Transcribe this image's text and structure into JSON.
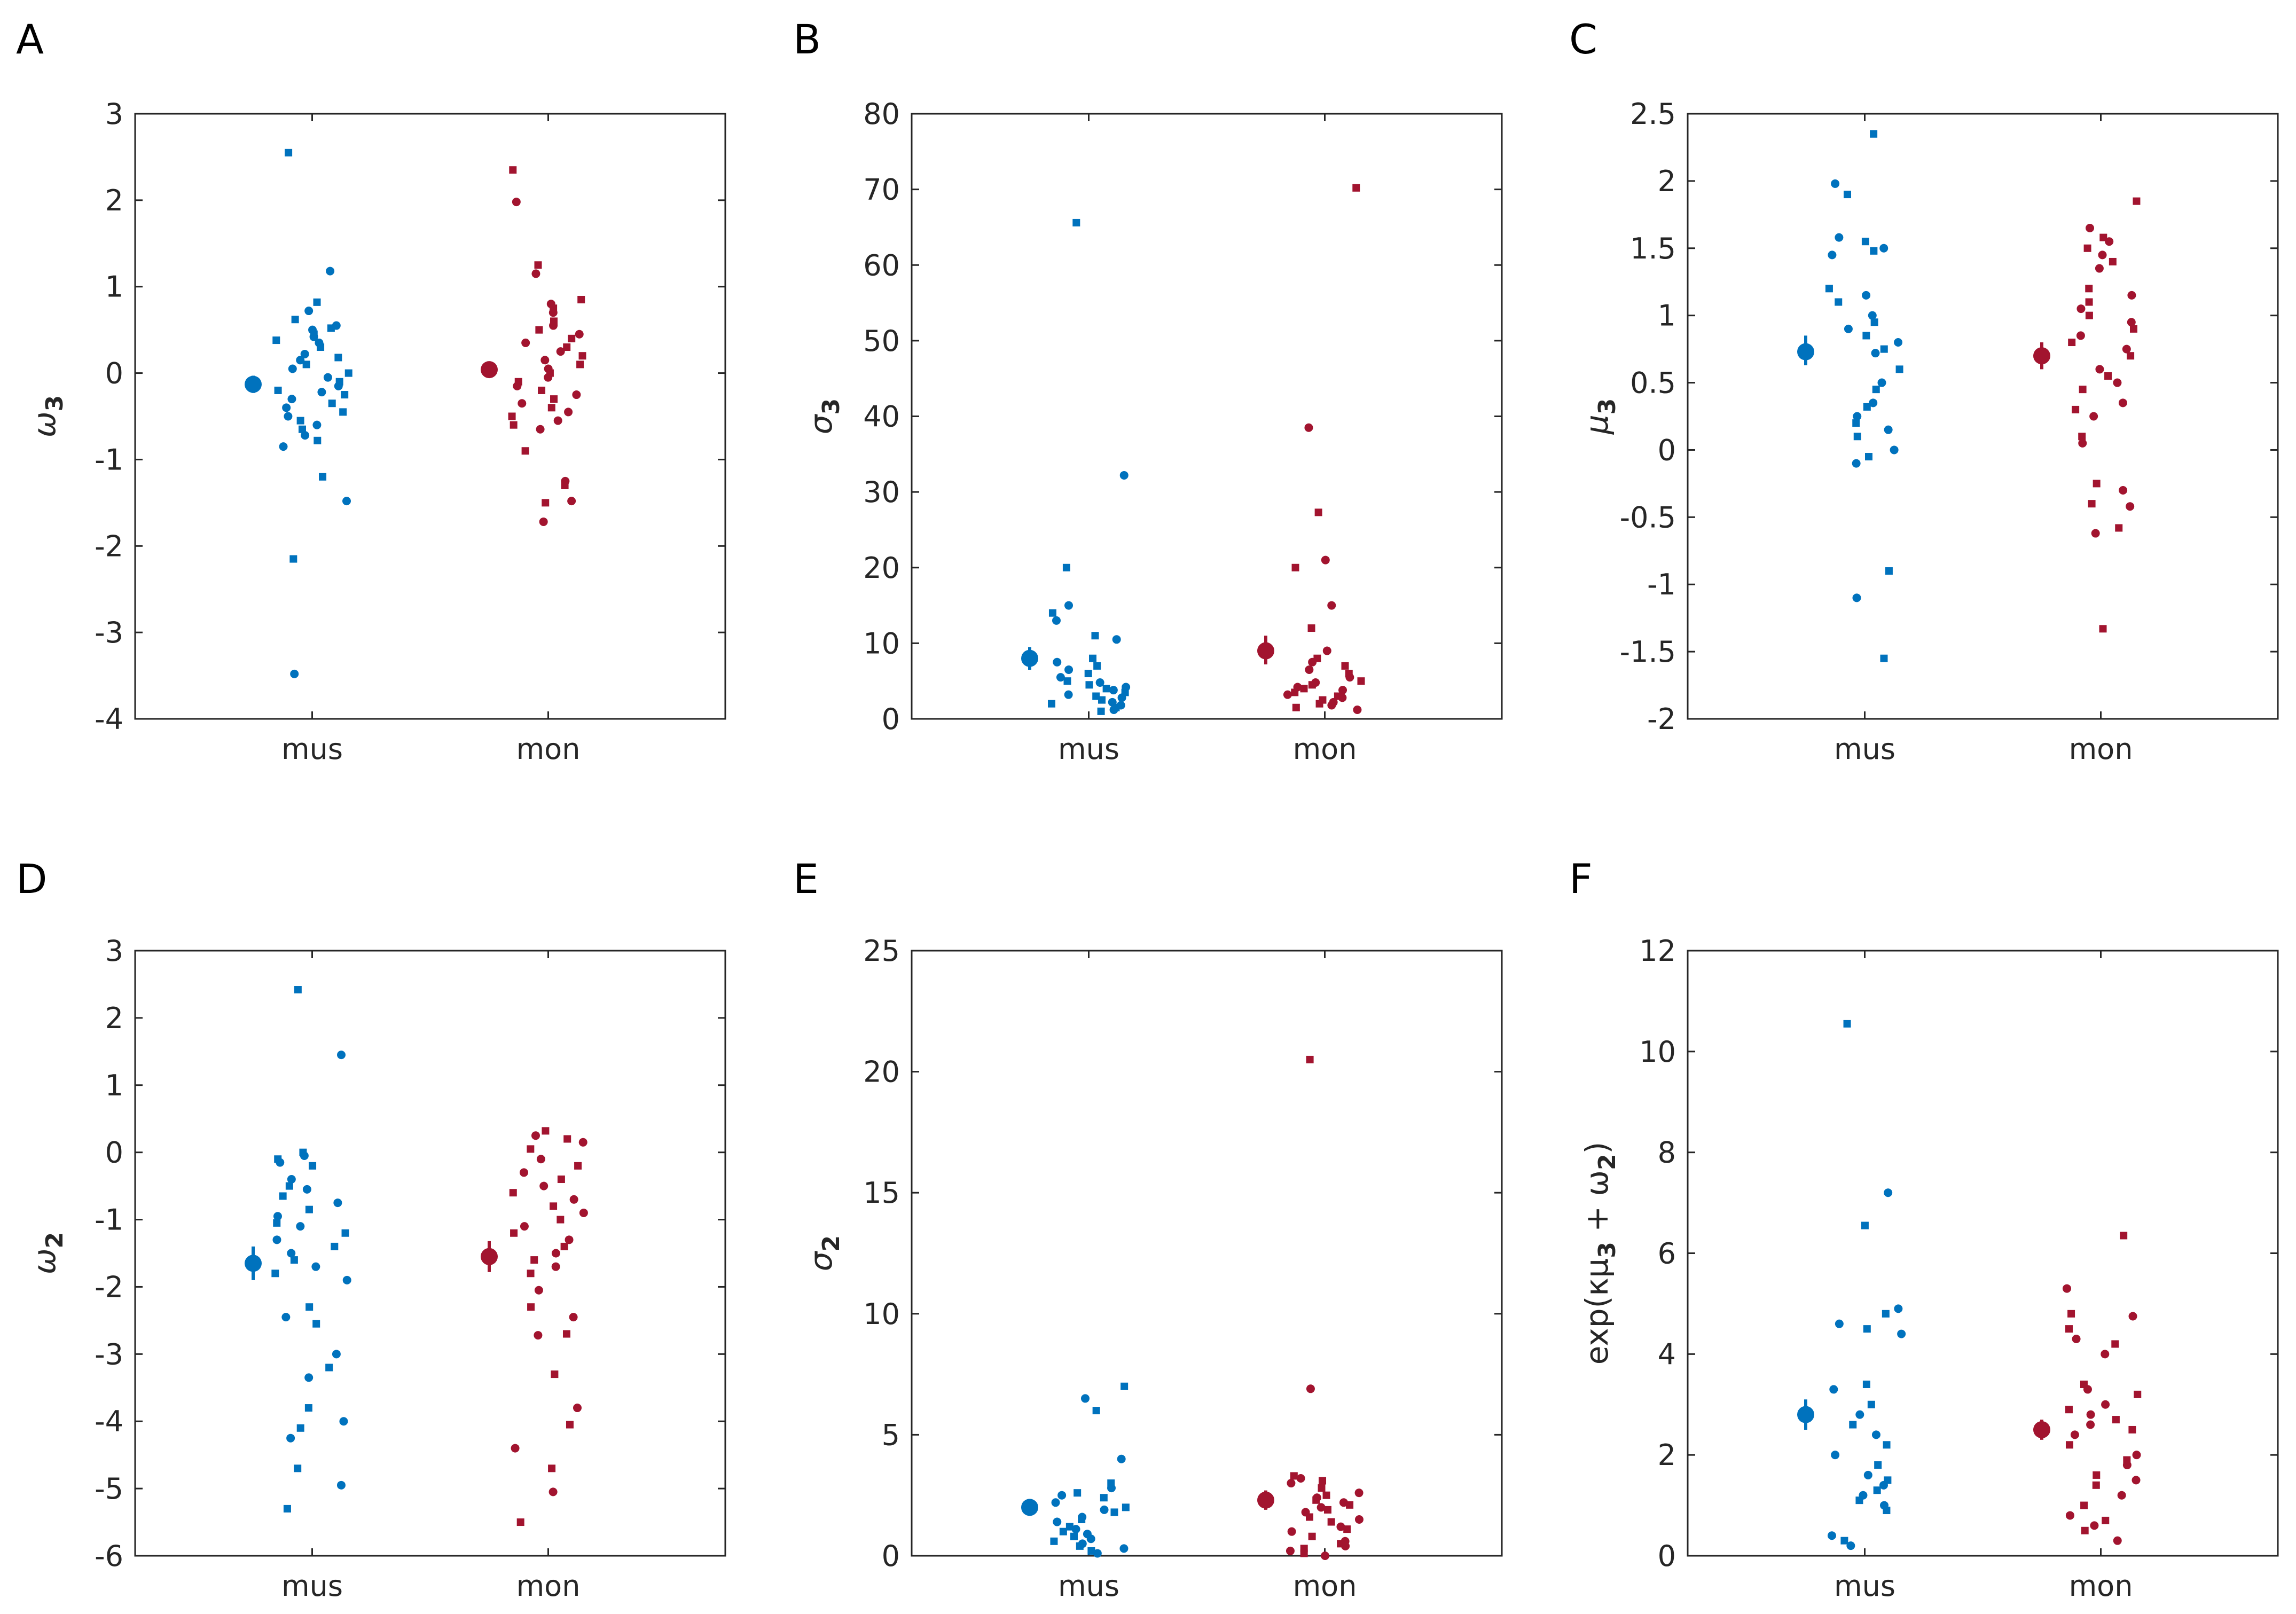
{
  "colors": {
    "mus": "#0072BD",
    "mon": "#A2142F",
    "axis": "#262626"
  },
  "chart_data": [
    {
      "panel": "A",
      "type": "scatter",
      "categories": [
        "mus",
        "mon"
      ],
      "ylabel": "ω",
      "ylabel_sub": "3",
      "ylim": [
        -4,
        3
      ],
      "yticks": [
        "-4",
        "-3",
        "-2",
        "-1",
        "0",
        "1",
        "2",
        "3"
      ],
      "summary": [
        {
          "group": "mus",
          "mean": -0.13,
          "low": -0.23,
          "high": -0.03
        },
        {
          "group": "mon",
          "mean": 0.04,
          "low": -0.05,
          "high": 0.13
        }
      ],
      "series": [
        {
          "group": "mus",
          "values": [
            2.55,
            1.18,
            0.82,
            0.72,
            0.62,
            0.55,
            0.52,
            0.5,
            0.45,
            0.42,
            0.38,
            0.35,
            0.3,
            0.22,
            0.18,
            0.15,
            0.1,
            0.05,
            0.0,
            -0.05,
            -0.1,
            -0.15,
            -0.2,
            -0.22,
            -0.25,
            -0.3,
            -0.35,
            -0.4,
            -0.45,
            -0.5,
            -0.55,
            -0.6,
            -0.65,
            -0.72,
            -0.78,
            -0.85,
            -1.2,
            -1.48,
            -2.15,
            -3.48
          ]
        },
        {
          "group": "mon",
          "values": [
            2.35,
            1.98,
            1.25,
            1.15,
            0.85,
            0.8,
            0.75,
            0.7,
            0.6,
            0.55,
            0.5,
            0.45,
            0.4,
            0.35,
            0.3,
            0.25,
            0.2,
            0.15,
            0.1,
            0.05,
            0.0,
            -0.05,
            -0.1,
            -0.15,
            -0.2,
            -0.25,
            -0.3,
            -0.35,
            -0.4,
            -0.45,
            -0.5,
            -0.55,
            -0.6,
            -0.65,
            -0.9,
            -1.25,
            -1.3,
            -1.48,
            -1.5,
            -1.72
          ]
        }
      ]
    },
    {
      "panel": "B",
      "type": "scatter",
      "categories": [
        "mus",
        "mon"
      ],
      "ylabel": "σ",
      "ylabel_sub": "3",
      "ylim": [
        0,
        80
      ],
      "yticks": [
        "0",
        "10",
        "20",
        "30",
        "40",
        "50",
        "60",
        "70",
        "80"
      ],
      "summary": [
        {
          "group": "mus",
          "mean": 8.0,
          "low": 6.5,
          "high": 9.5
        },
        {
          "group": "mon",
          "mean": 9.0,
          "low": 7.2,
          "high": 11.0
        }
      ],
      "series": [
        {
          "group": "mus",
          "values": [
            65.6,
            32.2,
            20.0,
            15.0,
            14.0,
            13.0,
            11.0,
            10.5,
            8.0,
            7.5,
            7.0,
            6.5,
            6.0,
            5.5,
            5.0,
            4.8,
            4.5,
            4.2,
            4.0,
            3.8,
            3.5,
            3.2,
            3.0,
            2.8,
            2.5,
            2.2,
            2.0,
            1.8,
            1.5,
            1.2,
            1.0
          ]
        },
        {
          "group": "mon",
          "values": [
            70.2,
            38.5,
            27.3,
            21.0,
            20.0,
            15.0,
            12.0,
            9.0,
            8.0,
            7.5,
            7.0,
            6.5,
            6.0,
            5.5,
            5.0,
            4.8,
            4.5,
            4.2,
            4.0,
            3.8,
            3.5,
            3.2,
            3.0,
            2.8,
            2.5,
            2.2,
            2.0,
            1.8,
            1.5,
            1.2
          ]
        }
      ]
    },
    {
      "panel": "C",
      "type": "scatter",
      "categories": [
        "mus",
        "mon"
      ],
      "ylabel": "μ",
      "ylabel_sub": "3",
      "ylim": [
        -2,
        2.5
      ],
      "yticks": [
        "-2",
        "-1.5",
        "-1",
        "-0.5",
        "0",
        "0.5",
        "1",
        "1.5",
        "2",
        "2.5"
      ],
      "summary": [
        {
          "group": "mus",
          "mean": 0.73,
          "low": 0.63,
          "high": 0.85
        },
        {
          "group": "mon",
          "mean": 0.7,
          "low": 0.6,
          "high": 0.8
        }
      ],
      "series": [
        {
          "group": "mus",
          "values": [
            2.35,
            1.98,
            1.9,
            1.58,
            1.55,
            1.5,
            1.48,
            1.45,
            1.2,
            1.15,
            1.1,
            1.0,
            0.95,
            0.9,
            0.85,
            0.8,
            0.75,
            0.72,
            0.6,
            0.5,
            0.45,
            0.35,
            0.32,
            0.25,
            0.2,
            0.15,
            0.1,
            0.0,
            -0.05,
            -0.1,
            -0.9,
            -1.1,
            -1.55
          ]
        },
        {
          "group": "mon",
          "values": [
            1.85,
            1.65,
            1.58,
            1.55,
            1.5,
            1.45,
            1.4,
            1.35,
            1.2,
            1.15,
            1.1,
            1.05,
            1.0,
            0.95,
            0.9,
            0.85,
            0.8,
            0.75,
            0.7,
            0.6,
            0.55,
            0.5,
            0.45,
            0.35,
            0.3,
            0.25,
            0.1,
            0.05,
            -0.25,
            -0.3,
            -0.4,
            -0.42,
            -0.58,
            -0.62,
            -1.33
          ]
        }
      ]
    },
    {
      "panel": "D",
      "type": "scatter",
      "categories": [
        "mus",
        "mon"
      ],
      "ylabel": "ω",
      "ylabel_sub": "2",
      "ylim": [
        -6,
        3
      ],
      "yticks": [
        "-6",
        "-5",
        "-4",
        "-3",
        "-2",
        "-1",
        "0",
        "1",
        "2",
        "3"
      ],
      "summary": [
        {
          "group": "mus",
          "mean": -1.65,
          "low": -1.9,
          "high": -1.4
        },
        {
          "group": "mon",
          "mean": -1.55,
          "low": -1.78,
          "high": -1.32
        }
      ],
      "series": [
        {
          "group": "mus",
          "values": [
            2.42,
            1.45,
            0.0,
            -0.05,
            -0.1,
            -0.15,
            -0.2,
            -0.4,
            -0.5,
            -0.55,
            -0.65,
            -0.75,
            -0.85,
            -0.95,
            -1.05,
            -1.1,
            -1.2,
            -1.3,
            -1.4,
            -1.5,
            -1.6,
            -1.7,
            -1.8,
            -1.9,
            -2.3,
            -2.45,
            -2.55,
            -3.0,
            -3.2,
            -3.35,
            -3.8,
            -4.0,
            -4.1,
            -4.25,
            -4.7,
            -4.95,
            -5.3
          ]
        },
        {
          "group": "mon",
          "values": [
            0.32,
            0.25,
            0.2,
            0.15,
            0.05,
            -0.1,
            -0.2,
            -0.3,
            -0.4,
            -0.5,
            -0.6,
            -0.7,
            -0.8,
            -0.9,
            -1.0,
            -1.1,
            -1.2,
            -1.3,
            -1.4,
            -1.5,
            -1.6,
            -1.7,
            -1.8,
            -2.05,
            -2.3,
            -2.45,
            -2.7,
            -2.72,
            -3.3,
            -3.8,
            -4.05,
            -4.4,
            -4.7,
            -5.05,
            -5.5
          ]
        }
      ]
    },
    {
      "panel": "E",
      "type": "scatter",
      "categories": [
        "mus",
        "mon"
      ],
      "ylabel": "σ",
      "ylabel_sub": "2",
      "ylim": [
        0,
        25
      ],
      "yticks": [
        "0",
        "5",
        "10",
        "15",
        "20",
        "25"
      ],
      "summary": [
        {
          "group": "mus",
          "mean": 2.0,
          "low": 1.7,
          "high": 2.3
        },
        {
          "group": "mon",
          "mean": 2.3,
          "low": 1.9,
          "high": 2.7
        }
      ],
      "series": [
        {
          "group": "mus",
          "values": [
            7.0,
            6.5,
            6.0,
            4.0,
            3.0,
            2.8,
            2.6,
            2.5,
            2.4,
            2.2,
            2.0,
            1.9,
            1.8,
            1.6,
            1.5,
            1.4,
            1.2,
            1.1,
            1.0,
            0.9,
            0.8,
            0.7,
            0.6,
            0.5,
            0.4,
            0.3,
            0.2,
            0.1
          ]
        },
        {
          "group": "mon",
          "values": [
            20.5,
            6.9,
            3.3,
            3.2,
            3.1,
            3.0,
            2.8,
            2.6,
            2.5,
            2.4,
            2.3,
            2.2,
            2.1,
            2.0,
            1.9,
            1.8,
            1.6,
            1.5,
            1.4,
            1.2,
            1.1,
            1.0,
            0.8,
            0.6,
            0.5,
            0.4,
            0.3,
            0.2,
            0.1,
            0.0
          ]
        }
      ]
    },
    {
      "panel": "F",
      "type": "scatter",
      "categories": [
        "mus",
        "mon"
      ],
      "ylabel": "exp(κμ",
      "ylabel_sub": "3",
      "ylabel_mid": " + ω",
      "ylabel_sub2": "2",
      "ylabel_end": ")",
      "ylim": [
        0,
        12
      ],
      "yticks": [
        "0",
        "2",
        "4",
        "6",
        "8",
        "10",
        "12"
      ],
      "summary": [
        {
          "group": "mus",
          "mean": 2.8,
          "low": 2.5,
          "high": 3.1
        },
        {
          "group": "mon",
          "mean": 2.5,
          "low": 2.3,
          "high": 2.7
        }
      ],
      "series": [
        {
          "group": "mus",
          "values": [
            10.55,
            7.2,
            6.55,
            4.9,
            4.8,
            4.6,
            4.5,
            4.4,
            3.4,
            3.3,
            3.0,
            2.8,
            2.6,
            2.4,
            2.2,
            2.0,
            1.8,
            1.6,
            1.5,
            1.4,
            1.3,
            1.2,
            1.1,
            1.0,
            0.9,
            0.4,
            0.3,
            0.2
          ]
        },
        {
          "group": "mon",
          "values": [
            6.35,
            5.3,
            4.8,
            4.75,
            4.5,
            4.3,
            4.2,
            4.0,
            3.4,
            3.3,
            3.2,
            3.0,
            2.9,
            2.8,
            2.7,
            2.6,
            2.5,
            2.4,
            2.2,
            2.0,
            1.9,
            1.8,
            1.6,
            1.5,
            1.4,
            1.2,
            1.0,
            0.8,
            0.7,
            0.6,
            0.5,
            0.3
          ]
        }
      ]
    }
  ]
}
